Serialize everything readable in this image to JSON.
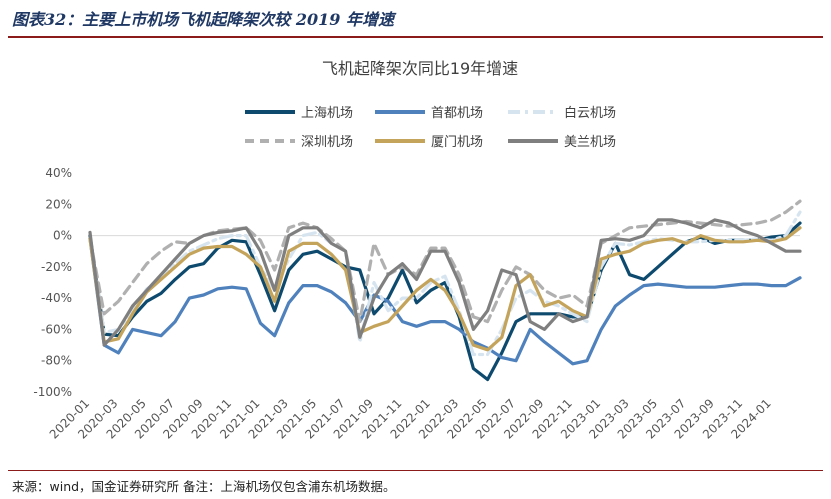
{
  "figure": {
    "title": "图表32：主要上市机场飞机起降架次较 2019 年增速",
    "source": "来源：wind，国金证券研究所   备注：上海机场仅包含浦东机场数据。"
  },
  "chart_data": {
    "type": "line",
    "title": "飞机起降架次同比19年增速",
    "xlabel": "",
    "ylabel": "",
    "ylim": [
      -100,
      40
    ],
    "y_ticks": [
      "40%",
      "20%",
      "0%",
      "-20%",
      "-40%",
      "-60%",
      "-80%",
      "-100%"
    ],
    "y_tick_values": [
      40,
      20,
      0,
      -20,
      -40,
      -60,
      -80,
      -100
    ],
    "x_tick_labels": [
      "2020-01",
      "2020-03",
      "2020-05",
      "2020-07",
      "2020-09",
      "2020-11",
      "2021-01",
      "2021-03",
      "2021-05",
      "2021-07",
      "2021-09",
      "2021-11",
      "2022-01",
      "2022-03",
      "2022-05",
      "2022-07",
      "2022-09",
      "2022-11",
      "2023-01",
      "2023-03",
      "2023-05",
      "2023-07",
      "2023-09",
      "2023-11",
      "2024-01"
    ],
    "legend_position": "top",
    "grid": false,
    "x_start": "2020-01",
    "n_points": 51,
    "series": [
      {
        "name": "上海机场",
        "color": "#0d4a6e",
        "dash": "solid",
        "values": [
          0,
          -63,
          -64,
          -52,
          -42,
          -37,
          -28,
          -20,
          -18,
          -8,
          -3,
          -4,
          -25,
          -48,
          -22,
          -12,
          -10,
          -15,
          -20,
          -22,
          -50,
          -40,
          -22,
          -43,
          -35,
          -30,
          -52,
          -85,
          -92,
          -75,
          -55,
          -50,
          -50,
          -50,
          -52,
          -52,
          -22,
          -5,
          -25,
          -28,
          -20,
          -12,
          -4,
          -1,
          -5,
          -3,
          -3,
          -3,
          -1,
          0,
          8
        ]
      },
      {
        "name": "首都机场",
        "color": "#4f81bd",
        "dash": "solid",
        "values": [
          -2,
          -70,
          -75,
          -60,
          -62,
          -64,
          -55,
          -40,
          -38,
          -34,
          -33,
          -34,
          -56,
          -64,
          -43,
          -32,
          -32,
          -36,
          -43,
          -55,
          -38,
          -42,
          -55,
          -58,
          -55,
          -55,
          -60,
          -68,
          -72,
          -78,
          -80,
          -60,
          -68,
          -75,
          -82,
          -80,
          -60,
          -45,
          -38,
          -32,
          -31,
          -32,
          -33,
          -33,
          -33,
          -32,
          -31,
          -31,
          -32,
          -32,
          -27
        ]
      },
      {
        "name": "白云机场",
        "color": "#d6e4f0",
        "dash": "dash-dot",
        "values": [
          -2,
          -62,
          -60,
          -48,
          -34,
          -28,
          -18,
          -10,
          -6,
          -2,
          0,
          0,
          -20,
          -35,
          -15,
          0,
          2,
          -5,
          -10,
          -68,
          -30,
          -48,
          -40,
          -40,
          -30,
          -26,
          -48,
          -76,
          -76,
          -60,
          -40,
          -35,
          -42,
          -45,
          -50,
          -55,
          -20,
          -5,
          -6,
          -4,
          -2,
          -3,
          -4,
          -4,
          -3,
          -3,
          -3,
          -2,
          -3,
          0,
          15
        ]
      },
      {
        "name": "深圳机场",
        "color": "#b0b0b0",
        "dash": "dash",
        "values": [
          -2,
          -50,
          -42,
          -30,
          -18,
          -10,
          -4,
          -5,
          0,
          3,
          4,
          5,
          -3,
          -22,
          5,
          8,
          5,
          -2,
          -10,
          -55,
          -5,
          -25,
          -20,
          -25,
          -8,
          -8,
          -25,
          -52,
          -55,
          -35,
          -20,
          -25,
          -35,
          -40,
          -38,
          -45,
          -5,
          0,
          5,
          6,
          7,
          8,
          9,
          8,
          7,
          6,
          7,
          8,
          10,
          15,
          22
        ]
      },
      {
        "name": "厦门机场",
        "color": "#c4a35a",
        "dash": "solid",
        "values": [
          -2,
          -68,
          -66,
          -50,
          -36,
          -28,
          -20,
          -12,
          -8,
          -7,
          -7,
          -12,
          -20,
          -42,
          -10,
          -5,
          -5,
          -12,
          -22,
          -62,
          -58,
          -55,
          -45,
          -35,
          -28,
          -35,
          -50,
          -70,
          -73,
          -65,
          -32,
          -25,
          -45,
          -42,
          -48,
          -52,
          -15,
          -12,
          -10,
          -5,
          -3,
          -2,
          -5,
          0,
          -3,
          -4,
          -4,
          -3,
          -4,
          -2,
          5
        ]
      },
      {
        "name": "美兰机场",
        "color": "#7f7f7f",
        "dash": "solid",
        "values": [
          2,
          -70,
          -60,
          -45,
          -35,
          -25,
          -15,
          -5,
          0,
          2,
          3,
          5,
          -10,
          -35,
          0,
          5,
          5,
          -5,
          -10,
          -65,
          -40,
          -25,
          -18,
          -28,
          -10,
          -10,
          -30,
          -60,
          -48,
          -22,
          -25,
          -55,
          -60,
          -50,
          -55,
          -52,
          -3,
          -2,
          -3,
          0,
          10,
          10,
          8,
          5,
          10,
          8,
          3,
          0,
          -5,
          -10,
          -10
        ]
      }
    ]
  }
}
